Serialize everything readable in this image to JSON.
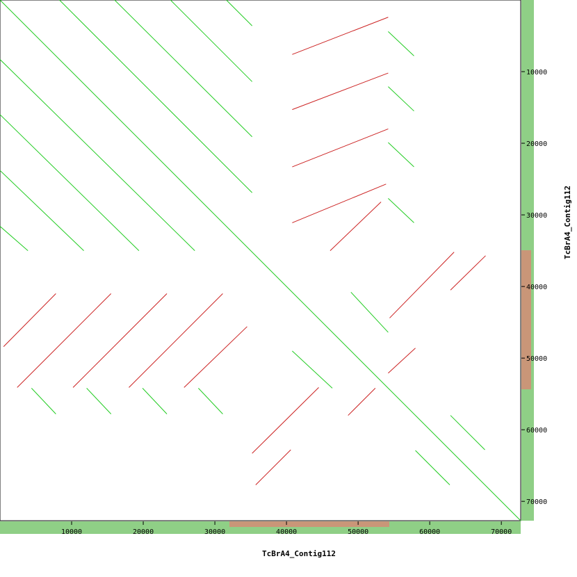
{
  "chart_data": {
    "type": "dotplot",
    "x_label": "TcBrA4_Contig112",
    "y_label": "TcBrA4_Contig112",
    "xlim": [
      0,
      72700
    ],
    "ylim": [
      0,
      72700
    ],
    "xticks": [
      10000,
      20000,
      30000,
      40000,
      50000,
      60000,
      70000
    ],
    "yticks": [
      10000,
      20000,
      30000,
      40000,
      50000,
      60000,
      70000
    ],
    "y_inverted": true,
    "series": [
      {
        "color": "#22cc22",
        "segments": [
          [
            0,
            0,
            72700,
            72700
          ],
          [
            0,
            8300,
            27200,
            35000
          ],
          [
            0,
            16000,
            19400,
            35000
          ],
          [
            0,
            23800,
            11700,
            35000
          ],
          [
            0,
            31600,
            3900,
            35000
          ],
          [
            8300,
            0,
            35200,
            26900
          ],
          [
            16000,
            0,
            35200,
            19100
          ],
          [
            23800,
            0,
            35200,
            11400
          ],
          [
            31600,
            0,
            35200,
            3600
          ],
          [
            54200,
            4400,
            57800,
            7800
          ],
          [
            54200,
            12100,
            57800,
            15500
          ],
          [
            54200,
            19900,
            57800,
            23300
          ],
          [
            54200,
            27700,
            57800,
            31100
          ],
          [
            49000,
            40800,
            54200,
            46400
          ],
          [
            4400,
            54200,
            7800,
            57800
          ],
          [
            12100,
            54200,
            15500,
            57800
          ],
          [
            19900,
            54200,
            23300,
            57800
          ],
          [
            27700,
            54200,
            31100,
            57800
          ],
          [
            40800,
            49000,
            46400,
            54200
          ],
          [
            62900,
            58000,
            67700,
            62800
          ],
          [
            58000,
            62900,
            62800,
            67700
          ]
        ]
      },
      {
        "color": "#cc2222",
        "segments": [
          [
            40800,
            7600,
            54200,
            2400
          ],
          [
            40800,
            15300,
            54200,
            10200
          ],
          [
            40800,
            23300,
            54200,
            18000
          ],
          [
            40800,
            31100,
            53900,
            25700
          ],
          [
            46100,
            35000,
            53200,
            28200
          ],
          [
            500,
            48400,
            7800,
            41000
          ],
          [
            2400,
            54100,
            15500,
            41000
          ],
          [
            10200,
            54100,
            23300,
            41000
          ],
          [
            18000,
            54100,
            31100,
            41000
          ],
          [
            25700,
            54100,
            34500,
            45600
          ],
          [
            54400,
            44400,
            63400,
            35200
          ],
          [
            62900,
            40500,
            67800,
            35700
          ],
          [
            54200,
            52100,
            58000,
            48600
          ],
          [
            35200,
            63300,
            44500,
            54100
          ],
          [
            35700,
            67700,
            40600,
            62800
          ],
          [
            48600,
            58000,
            52400,
            54200
          ]
        ]
      }
    ]
  }
}
